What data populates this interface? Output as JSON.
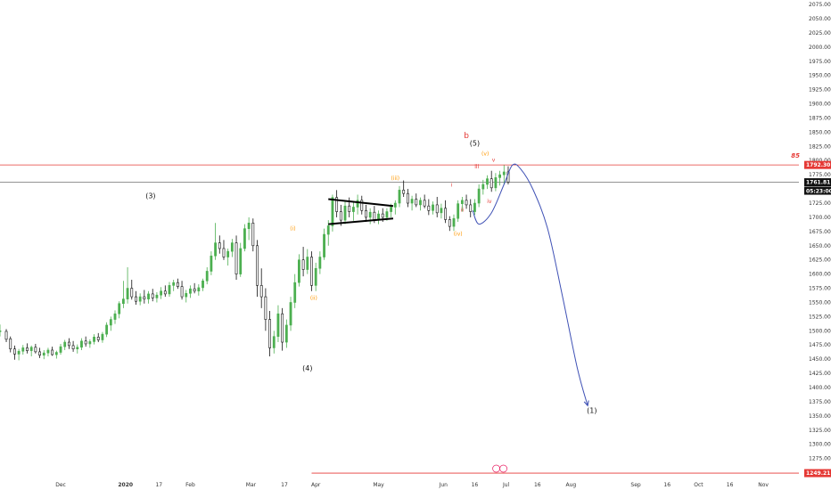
{
  "chart_data": {
    "type": "candlestick",
    "y_axis": {
      "ticks": [
        2075,
        2050,
        2025,
        2000,
        1975,
        1950,
        1925,
        1900,
        1875,
        1850,
        1825,
        1800,
        1775,
        1750,
        1725,
        1700,
        1675,
        1650,
        1625,
        1600,
        1575,
        1550,
        1525,
        1500,
        1475,
        1450,
        1425,
        1400,
        1375,
        1350,
        1325,
        1300,
        1275,
        1250
      ],
      "tick_labels": [
        "2075.00",
        "2050.00",
        "2025.00",
        "2000.00",
        "1975.00",
        "1950.00",
        "1925.00",
        "1900.00",
        "1875.00",
        "1850.00",
        "1825.00",
        "1800.00",
        "1775.00",
        "1750.00",
        "1725.00",
        "1700.00",
        "1675.00",
        "1650.00",
        "1625.00",
        "1600.00",
        "1575.00",
        "1550.00",
        "1525.00",
        "1500.00",
        "1475.00",
        "1450.00",
        "1425.00",
        "1400.00",
        "1375.00",
        "1350.00",
        "1325.00",
        "1300.00",
        "1275.00"
      ],
      "range": [
        1243,
        2083
      ],
      "side": "right"
    },
    "x_axis": {
      "labels": [
        {
          "text": "Dec",
          "day": 30,
          "bold": false
        },
        {
          "text": "2020",
          "day": 61,
          "bold": true
        },
        {
          "text": "17",
          "day": 77,
          "bold": false
        },
        {
          "text": "Feb",
          "day": 92,
          "bold": false
        },
        {
          "text": "Mar",
          "day": 121,
          "bold": false
        },
        {
          "text": "17",
          "day": 137,
          "bold": false
        },
        {
          "text": "Apr",
          "day": 152,
          "bold": false
        },
        {
          "text": "May",
          "day": 182,
          "bold": false
        },
        {
          "text": "Jun",
          "day": 213,
          "bold": false
        },
        {
          "text": "16",
          "day": 228,
          "bold": false
        },
        {
          "text": "Jul",
          "day": 243,
          "bold": false
        },
        {
          "text": "16",
          "day": 258,
          "bold": false
        },
        {
          "text": "Aug",
          "day": 274,
          "bold": false
        },
        {
          "text": "Sep",
          "day": 305,
          "bold": false
        },
        {
          "text": "16",
          "day": 320,
          "bold": false
        },
        {
          "text": "Oct",
          "day": 335,
          "bold": false
        },
        {
          "text": "16",
          "day": 350,
          "bold": false
        },
        {
          "text": "Nov",
          "day": 366,
          "bold": false
        }
      ],
      "range": [
        1,
        383
      ]
    },
    "candles": [
      {
        "d": 1,
        "o": 1500,
        "h": 1511,
        "l": 1490,
        "c": 1500
      },
      {
        "d": 4,
        "o": 1499,
        "h": 1503,
        "l": 1480,
        "c": 1485
      },
      {
        "d": 6,
        "o": 1486,
        "h": 1490,
        "l": 1462,
        "c": 1468
      },
      {
        "d": 8,
        "o": 1468,
        "h": 1474,
        "l": 1449,
        "c": 1459
      },
      {
        "d": 10,
        "o": 1459,
        "h": 1468,
        "l": 1448,
        "c": 1464
      },
      {
        "d": 12,
        "o": 1464,
        "h": 1475,
        "l": 1458,
        "c": 1470
      },
      {
        "d": 14,
        "o": 1470,
        "h": 1478,
        "l": 1460,
        "c": 1465
      },
      {
        "d": 16,
        "o": 1465,
        "h": 1474,
        "l": 1455,
        "c": 1471
      },
      {
        "d": 18,
        "o": 1471,
        "h": 1477,
        "l": 1460,
        "c": 1463
      },
      {
        "d": 20,
        "o": 1463,
        "h": 1470,
        "l": 1452,
        "c": 1457
      },
      {
        "d": 22,
        "o": 1457,
        "h": 1466,
        "l": 1450,
        "c": 1461
      },
      {
        "d": 24,
        "o": 1461,
        "h": 1470,
        "l": 1455,
        "c": 1466
      },
      {
        "d": 26,
        "o": 1466,
        "h": 1472,
        "l": 1456,
        "c": 1458
      },
      {
        "d": 28,
        "o": 1458,
        "h": 1465,
        "l": 1451,
        "c": 1462
      },
      {
        "d": 30,
        "o": 1462,
        "h": 1477,
        "l": 1458,
        "c": 1472
      },
      {
        "d": 32,
        "o": 1472,
        "h": 1484,
        "l": 1466,
        "c": 1480
      },
      {
        "d": 34,
        "o": 1480,
        "h": 1487,
        "l": 1468,
        "c": 1474
      },
      {
        "d": 36,
        "o": 1474,
        "h": 1482,
        "l": 1463,
        "c": 1468
      },
      {
        "d": 38,
        "o": 1468,
        "h": 1476,
        "l": 1460,
        "c": 1471
      },
      {
        "d": 40,
        "o": 1471,
        "h": 1487,
        "l": 1466,
        "c": 1482
      },
      {
        "d": 42,
        "o": 1482,
        "h": 1490,
        "l": 1472,
        "c": 1477
      },
      {
        "d": 44,
        "o": 1477,
        "h": 1485,
        "l": 1470,
        "c": 1481
      },
      {
        "d": 46,
        "o": 1481,
        "h": 1494,
        "l": 1476,
        "c": 1489
      },
      {
        "d": 48,
        "o": 1489,
        "h": 1496,
        "l": 1480,
        "c": 1484
      },
      {
        "d": 50,
        "o": 1484,
        "h": 1498,
        "l": 1479,
        "c": 1494
      },
      {
        "d": 52,
        "o": 1494,
        "h": 1515,
        "l": 1489,
        "c": 1510
      },
      {
        "d": 54,
        "o": 1510,
        "h": 1525,
        "l": 1500,
        "c": 1520
      },
      {
        "d": 56,
        "o": 1520,
        "h": 1536,
        "l": 1512,
        "c": 1530
      },
      {
        "d": 58,
        "o": 1530,
        "h": 1552,
        "l": 1522,
        "c": 1548
      },
      {
        "d": 60,
        "o": 1548,
        "h": 1588,
        "l": 1540,
        "c": 1556
      },
      {
        "d": 62,
        "o": 1556,
        "h": 1612,
        "l": 1548,
        "c": 1575
      },
      {
        "d": 64,
        "o": 1575,
        "h": 1590,
        "l": 1555,
        "c": 1560
      },
      {
        "d": 66,
        "o": 1560,
        "h": 1570,
        "l": 1546,
        "c": 1552
      },
      {
        "d": 68,
        "o": 1552,
        "h": 1566,
        "l": 1545,
        "c": 1560
      },
      {
        "d": 70,
        "o": 1560,
        "h": 1572,
        "l": 1548,
        "c": 1556
      },
      {
        "d": 72,
        "o": 1556,
        "h": 1570,
        "l": 1548,
        "c": 1565
      },
      {
        "d": 74,
        "o": 1565,
        "h": 1574,
        "l": 1552,
        "c": 1558
      },
      {
        "d": 76,
        "o": 1558,
        "h": 1568,
        "l": 1550,
        "c": 1563
      },
      {
        "d": 78,
        "o": 1563,
        "h": 1577,
        "l": 1556,
        "c": 1570
      },
      {
        "d": 80,
        "o": 1570,
        "h": 1580,
        "l": 1560,
        "c": 1565
      },
      {
        "d": 82,
        "o": 1565,
        "h": 1586,
        "l": 1560,
        "c": 1580
      },
      {
        "d": 84,
        "o": 1580,
        "h": 1590,
        "l": 1570,
        "c": 1585
      },
      {
        "d": 86,
        "o": 1585,
        "h": 1592,
        "l": 1574,
        "c": 1578
      },
      {
        "d": 88,
        "o": 1578,
        "h": 1588,
        "l": 1555,
        "c": 1560
      },
      {
        "d": 90,
        "o": 1560,
        "h": 1572,
        "l": 1550,
        "c": 1566
      },
      {
        "d": 92,
        "o": 1566,
        "h": 1580,
        "l": 1558,
        "c": 1574
      },
      {
        "d": 94,
        "o": 1574,
        "h": 1584,
        "l": 1566,
        "c": 1570
      },
      {
        "d": 96,
        "o": 1570,
        "h": 1582,
        "l": 1562,
        "c": 1576
      },
      {
        "d": 98,
        "o": 1576,
        "h": 1592,
        "l": 1570,
        "c": 1588
      },
      {
        "d": 100,
        "o": 1588,
        "h": 1612,
        "l": 1582,
        "c": 1605
      },
      {
        "d": 102,
        "o": 1605,
        "h": 1640,
        "l": 1598,
        "c": 1632
      },
      {
        "d": 104,
        "o": 1632,
        "h": 1690,
        "l": 1625,
        "c": 1655
      },
      {
        "d": 106,
        "o": 1655,
        "h": 1668,
        "l": 1636,
        "c": 1645
      },
      {
        "d": 108,
        "o": 1645,
        "h": 1660,
        "l": 1625,
        "c": 1630
      },
      {
        "d": 110,
        "o": 1630,
        "h": 1645,
        "l": 1615,
        "c": 1640
      },
      {
        "d": 112,
        "o": 1640,
        "h": 1662,
        "l": 1630,
        "c": 1655
      },
      {
        "d": 114,
        "o": 1655,
        "h": 1668,
        "l": 1590,
        "c": 1600
      },
      {
        "d": 116,
        "o": 1600,
        "h": 1655,
        "l": 1595,
        "c": 1645
      },
      {
        "d": 118,
        "o": 1645,
        "h": 1688,
        "l": 1640,
        "c": 1680
      },
      {
        "d": 120,
        "o": 1680,
        "h": 1700,
        "l": 1660,
        "c": 1690
      },
      {
        "d": 122,
        "o": 1690,
        "h": 1698,
        "l": 1640,
        "c": 1650
      },
      {
        "d": 124,
        "o": 1650,
        "h": 1660,
        "l": 1560,
        "c": 1580
      },
      {
        "d": 126,
        "o": 1580,
        "h": 1610,
        "l": 1540,
        "c": 1560
      },
      {
        "d": 128,
        "o": 1560,
        "h": 1575,
        "l": 1500,
        "c": 1520
      },
      {
        "d": 130,
        "o": 1520,
        "h": 1535,
        "l": 1455,
        "c": 1470
      },
      {
        "d": 132,
        "o": 1470,
        "h": 1500,
        "l": 1460,
        "c": 1490
      },
      {
        "d": 134,
        "o": 1490,
        "h": 1545,
        "l": 1480,
        "c": 1530
      },
      {
        "d": 136,
        "o": 1530,
        "h": 1540,
        "l": 1465,
        "c": 1480
      },
      {
        "d": 138,
        "o": 1480,
        "h": 1520,
        "l": 1470,
        "c": 1510
      },
      {
        "d": 140,
        "o": 1510,
        "h": 1560,
        "l": 1500,
        "c": 1550
      },
      {
        "d": 142,
        "o": 1550,
        "h": 1600,
        "l": 1540,
        "c": 1585
      },
      {
        "d": 144,
        "o": 1585,
        "h": 1635,
        "l": 1578,
        "c": 1625
      },
      {
        "d": 146,
        "o": 1625,
        "h": 1648,
        "l": 1596,
        "c": 1608
      },
      {
        "d": 148,
        "o": 1608,
        "h": 1644,
        "l": 1600,
        "c": 1630
      },
      {
        "d": 150,
        "o": 1630,
        "h": 1640,
        "l": 1570,
        "c": 1580
      },
      {
        "d": 152,
        "o": 1580,
        "h": 1620,
        "l": 1570,
        "c": 1610
      },
      {
        "d": 154,
        "o": 1610,
        "h": 1640,
        "l": 1600,
        "c": 1630
      },
      {
        "d": 156,
        "o": 1630,
        "h": 1680,
        "l": 1625,
        "c": 1670
      },
      {
        "d": 158,
        "o": 1670,
        "h": 1695,
        "l": 1650,
        "c": 1685
      },
      {
        "d": 160,
        "o": 1685,
        "h": 1740,
        "l": 1675,
        "c": 1735
      },
      {
        "d": 162,
        "o": 1735,
        "h": 1748,
        "l": 1700,
        "c": 1710
      },
      {
        "d": 164,
        "o": 1710,
        "h": 1722,
        "l": 1685,
        "c": 1695
      },
      {
        "d": 166,
        "o": 1695,
        "h": 1730,
        "l": 1688,
        "c": 1720
      },
      {
        "d": 168,
        "o": 1720,
        "h": 1735,
        "l": 1700,
        "c": 1710
      },
      {
        "d": 170,
        "o": 1710,
        "h": 1728,
        "l": 1694,
        "c": 1718
      },
      {
        "d": 172,
        "o": 1718,
        "h": 1740,
        "l": 1705,
        "c": 1730
      },
      {
        "d": 174,
        "o": 1730,
        "h": 1738,
        "l": 1705,
        "c": 1712
      },
      {
        "d": 176,
        "o": 1712,
        "h": 1722,
        "l": 1692,
        "c": 1700
      },
      {
        "d": 178,
        "o": 1700,
        "h": 1716,
        "l": 1688,
        "c": 1709
      },
      {
        "d": 180,
        "o": 1709,
        "h": 1720,
        "l": 1690,
        "c": 1696
      },
      {
        "d": 182,
        "o": 1696,
        "h": 1712,
        "l": 1688,
        "c": 1706
      },
      {
        "d": 184,
        "o": 1706,
        "h": 1716,
        "l": 1692,
        "c": 1700
      },
      {
        "d": 186,
        "o": 1700,
        "h": 1716,
        "l": 1694,
        "c": 1710
      },
      {
        "d": 188,
        "o": 1710,
        "h": 1724,
        "l": 1700,
        "c": 1718
      },
      {
        "d": 190,
        "o": 1718,
        "h": 1730,
        "l": 1705,
        "c": 1725
      },
      {
        "d": 192,
        "o": 1725,
        "h": 1755,
        "l": 1718,
        "c": 1748
      },
      {
        "d": 194,
        "o": 1748,
        "h": 1765,
        "l": 1736,
        "c": 1742
      },
      {
        "d": 196,
        "o": 1742,
        "h": 1750,
        "l": 1718,
        "c": 1725
      },
      {
        "d": 198,
        "o": 1725,
        "h": 1738,
        "l": 1712,
        "c": 1732
      },
      {
        "d": 200,
        "o": 1732,
        "h": 1742,
        "l": 1718,
        "c": 1722
      },
      {
        "d": 202,
        "o": 1722,
        "h": 1735,
        "l": 1712,
        "c": 1730
      },
      {
        "d": 204,
        "o": 1730,
        "h": 1740,
        "l": 1716,
        "c": 1720
      },
      {
        "d": 206,
        "o": 1720,
        "h": 1732,
        "l": 1704,
        "c": 1712
      },
      {
        "d": 208,
        "o": 1712,
        "h": 1728,
        "l": 1705,
        "c": 1722
      },
      {
        "d": 210,
        "o": 1722,
        "h": 1736,
        "l": 1700,
        "c": 1708
      },
      {
        "d": 212,
        "o": 1708,
        "h": 1724,
        "l": 1698,
        "c": 1716
      },
      {
        "d": 214,
        "o": 1716,
        "h": 1730,
        "l": 1690,
        "c": 1696
      },
      {
        "d": 216,
        "o": 1696,
        "h": 1702,
        "l": 1676,
        "c": 1684
      },
      {
        "d": 218,
        "o": 1684,
        "h": 1705,
        "l": 1676,
        "c": 1698
      },
      {
        "d": 220,
        "o": 1698,
        "h": 1730,
        "l": 1692,
        "c": 1724
      },
      {
        "d": 222,
        "o": 1724,
        "h": 1736,
        "l": 1710,
        "c": 1730
      },
      {
        "d": 224,
        "o": 1730,
        "h": 1740,
        "l": 1715,
        "c": 1722
      },
      {
        "d": 226,
        "o": 1722,
        "h": 1732,
        "l": 1700,
        "c": 1710
      },
      {
        "d": 228,
        "o": 1710,
        "h": 1732,
        "l": 1704,
        "c": 1725
      },
      {
        "d": 230,
        "o": 1725,
        "h": 1758,
        "l": 1718,
        "c": 1750
      },
      {
        "d": 232,
        "o": 1750,
        "h": 1766,
        "l": 1740,
        "c": 1758
      },
      {
        "d": 234,
        "o": 1758,
        "h": 1774,
        "l": 1750,
        "c": 1768
      },
      {
        "d": 236,
        "o": 1768,
        "h": 1782,
        "l": 1745,
        "c": 1752
      },
      {
        "d": 238,
        "o": 1752,
        "h": 1778,
        "l": 1746,
        "c": 1770
      },
      {
        "d": 240,
        "o": 1770,
        "h": 1782,
        "l": 1756,
        "c": 1775
      },
      {
        "d": 242,
        "o": 1775,
        "h": 1792,
        "l": 1758,
        "c": 1780
      },
      {
        "d": 244,
        "o": 1780,
        "h": 1790,
        "l": 1758,
        "c": 1762
      }
    ],
    "colors": {
      "up": "#4caf50",
      "down": "#111111",
      "up_body": "#ffffff",
      "resistance": "#e53935",
      "projection": "#3f51b5",
      "wave_orange": "#ff9800",
      "wave_red": "#e53935",
      "wave_black": "#111111"
    },
    "price_lines": [
      {
        "value": 1792.3,
        "label": "1792.30",
        "color": "#e53935",
        "style": "solid",
        "badge_color": "#e53935"
      },
      {
        "value": 1761.81,
        "label": "1761.81",
        "color": "#555555",
        "style": "solid",
        "badge_color": "#111111"
      },
      {
        "value": 1249.21,
        "label": "1249.21",
        "color": "#e53935",
        "style": "solid",
        "badge_color": "#e53935"
      }
    ],
    "countdown": "05:23:00",
    "line_end_label": "85",
    "triangle_lines": [
      {
        "x1": 158,
        "y1": 1732,
        "x2": 189,
        "y2": 1720
      },
      {
        "x1": 158,
        "y1": 1688,
        "x2": 189,
        "y2": 1698
      }
    ],
    "projection_path": [
      {
        "d": 227,
        "v": 1712
      },
      {
        "d": 230,
        "v": 1688
      },
      {
        "d": 236,
        "v": 1708
      },
      {
        "d": 242,
        "v": 1758
      },
      {
        "d": 246,
        "v": 1792
      },
      {
        "d": 250,
        "v": 1785
      },
      {
        "d": 256,
        "v": 1748
      },
      {
        "d": 263,
        "v": 1678
      },
      {
        "d": 270,
        "v": 1560
      },
      {
        "d": 277,
        "v": 1435
      },
      {
        "d": 282,
        "v": 1368
      }
    ],
    "wave_labels": [
      {
        "text": "(3)",
        "d": 73,
        "v": 1734,
        "color": "#111111",
        "size": 8
      },
      {
        "text": "(4)",
        "d": 148,
        "v": 1430,
        "color": "#111111",
        "size": 8
      },
      {
        "text": "(5)",
        "d": 228,
        "v": 1826,
        "color": "#111111",
        "size": 8
      },
      {
        "text": "b",
        "d": 224,
        "v": 1840,
        "color": "#e53935",
        "size": 9
      },
      {
        "text": "(1)",
        "d": 284,
        "v": 1355,
        "color": "#111111",
        "size": 8
      },
      {
        "text": "(i)",
        "d": 141,
        "v": 1677,
        "color": "#ff9800",
        "size": 6
      },
      {
        "text": "(ii)",
        "d": 151,
        "v": 1555,
        "color": "#ff9800",
        "size": 6
      },
      {
        "text": "(iii)",
        "d": 190,
        "v": 1766,
        "color": "#ff9800",
        "size": 6
      },
      {
        "text": "(iv)",
        "d": 220,
        "v": 1668,
        "color": "#ff9800",
        "size": 6
      },
      {
        "text": "(v)",
        "d": 233,
        "v": 1809,
        "color": "#ff9800",
        "size": 6
      },
      {
        "text": "i",
        "d": 217,
        "v": 1754,
        "color": "#e53935",
        "size": 6
      },
      {
        "text": "ii",
        "d": 222,
        "v": 1710,
        "color": "#e53935",
        "size": 6
      },
      {
        "text": "iii",
        "d": 229,
        "v": 1786,
        "color": "#e53935",
        "size": 6
      },
      {
        "text": "iv",
        "d": 235,
        "v": 1725,
        "color": "#e53935",
        "size": 6
      },
      {
        "text": "v",
        "d": 237,
        "v": 1798,
        "color": "#e53935",
        "size": 6
      }
    ],
    "grid": false
  }
}
